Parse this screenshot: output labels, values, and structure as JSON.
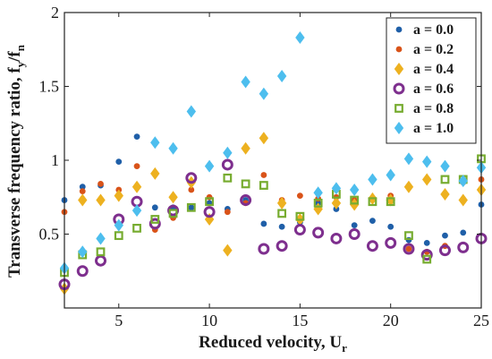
{
  "chart_data": {
    "type": "scatter",
    "title": "",
    "xlabel": "Reduced velocity, U",
    "xlabel_sub": "r",
    "ylabel": "Transverse frequency ratio, f",
    "ylabel_sub1": "y",
    "ylabel_mid": "/f",
    "ylabel_sub2": "n",
    "xlim": [
      2,
      25
    ],
    "ylim": [
      0,
      2
    ],
    "xticks": [
      5,
      10,
      15,
      20,
      25
    ],
    "yticks": [
      0.5,
      1,
      1.5,
      2
    ],
    "xtick_labels": [
      "5",
      "10",
      "15",
      "20",
      "25"
    ],
    "ytick_labels": [
      "0.5",
      "1",
      "1.5",
      "2"
    ],
    "grid": false,
    "legend_position": "top-right",
    "series": [
      {
        "name": "a = 0.0",
        "color": "#1f5fa8",
        "marker": "circle-small",
        "points": [
          [
            2,
            0.73
          ],
          [
            3,
            0.82
          ],
          [
            4,
            0.83
          ],
          [
            5,
            0.99
          ],
          [
            6,
            1.16
          ],
          [
            7,
            0.68
          ],
          [
            8,
            0.68
          ],
          [
            9,
            0.68
          ],
          [
            10,
            0.71
          ],
          [
            11,
            0.67
          ],
          [
            12,
            0.73
          ],
          [
            13,
            0.57
          ],
          [
            14,
            0.55
          ],
          [
            15,
            0.58
          ],
          [
            16,
            0.71
          ],
          [
            17,
            0.67
          ],
          [
            18,
            0.56
          ],
          [
            19,
            0.59
          ],
          [
            20,
            0.55
          ],
          [
            21,
            0.46
          ],
          [
            22,
            0.44
          ],
          [
            23,
            0.49
          ],
          [
            24,
            0.51
          ],
          [
            25,
            0.7
          ]
        ]
      },
      {
        "name": "a = 0.2",
        "color": "#d95319",
        "marker": "circle-small",
        "points": [
          [
            2,
            0.65
          ],
          [
            3,
            0.79
          ],
          [
            4,
            0.84
          ],
          [
            5,
            0.8
          ],
          [
            6,
            0.96
          ],
          [
            7,
            0.53
          ],
          [
            8,
            0.61
          ],
          [
            9,
            0.8
          ],
          [
            10,
            0.75
          ],
          [
            11,
            0.65
          ],
          [
            12,
            0.71
          ],
          [
            13,
            0.9
          ],
          [
            14,
            0.73
          ],
          [
            15,
            0.76
          ],
          [
            16,
            0.74
          ],
          [
            17,
            0.75
          ],
          [
            18,
            0.73
          ],
          [
            19,
            0.74
          ],
          [
            20,
            0.76
          ],
          [
            21,
            0.4
          ],
          [
            22,
            0.38
          ],
          [
            23,
            0.42
          ],
          [
            24,
            0.85
          ],
          [
            25,
            0.87
          ]
        ]
      },
      {
        "name": "a = 0.4",
        "color": "#edb120",
        "marker": "diamond",
        "points": [
          [
            2,
            0.13
          ],
          [
            3,
            0.73
          ],
          [
            4,
            0.73
          ],
          [
            5,
            0.76
          ],
          [
            6,
            0.82
          ],
          [
            7,
            0.91
          ],
          [
            8,
            0.75
          ],
          [
            9,
            0.85
          ],
          [
            10,
            0.6
          ],
          [
            11,
            0.39
          ],
          [
            12,
            1.08
          ],
          [
            13,
            1.15
          ],
          [
            14,
            0.71
          ],
          [
            15,
            0.6
          ],
          [
            16,
            0.67
          ],
          [
            17,
            0.71
          ],
          [
            18,
            0.7
          ],
          [
            19,
            0.74
          ],
          [
            20,
            0.73
          ],
          [
            21,
            0.82
          ],
          [
            22,
            0.87
          ],
          [
            23,
            0.77
          ],
          [
            24,
            0.73
          ],
          [
            25,
            0.8
          ]
        ]
      },
      {
        "name": "a = 0.6",
        "color": "#7e2f8e",
        "marker": "circle-ring",
        "points": [
          [
            2,
            0.16
          ],
          [
            3,
            0.25
          ],
          [
            4,
            0.32
          ],
          [
            5,
            0.6
          ],
          [
            6,
            0.72
          ],
          [
            7,
            0.57
          ],
          [
            8,
            0.66
          ],
          [
            9,
            0.88
          ],
          [
            10,
            0.65
          ],
          [
            11,
            0.97
          ],
          [
            12,
            0.73
          ],
          [
            13,
            0.4
          ],
          [
            14,
            0.42
          ],
          [
            15,
            0.53
          ],
          [
            16,
            0.51
          ],
          [
            17,
            0.47
          ],
          [
            18,
            0.5
          ],
          [
            19,
            0.42
          ],
          [
            20,
            0.44
          ],
          [
            21,
            0.4
          ],
          [
            22,
            0.36
          ],
          [
            23,
            0.39
          ],
          [
            24,
            0.41
          ],
          [
            25,
            0.47
          ]
        ]
      },
      {
        "name": "a = 0.8",
        "color": "#77ac30",
        "marker": "square",
        "points": [
          [
            2,
            0.24
          ],
          [
            3,
            0.36
          ],
          [
            4,
            0.38
          ],
          [
            5,
            0.49
          ],
          [
            6,
            0.54
          ],
          [
            7,
            0.6
          ],
          [
            8,
            0.64
          ],
          [
            9,
            0.68
          ],
          [
            10,
            0.72
          ],
          [
            11,
            0.88
          ],
          [
            12,
            0.84
          ],
          [
            13,
            0.83
          ],
          [
            14,
            0.64
          ],
          [
            15,
            0.62
          ],
          [
            16,
            0.71
          ],
          [
            17,
            0.77
          ],
          [
            18,
            0.73
          ],
          [
            19,
            0.72
          ],
          [
            20,
            0.72
          ],
          [
            21,
            0.49
          ],
          [
            22,
            0.33
          ],
          [
            23,
            0.87
          ],
          [
            24,
            0.87
          ],
          [
            25,
            1.01
          ]
        ]
      },
      {
        "name": "a = 1.0",
        "color": "#4dbeee",
        "marker": "diamond",
        "points": [
          [
            2,
            0.27
          ],
          [
            3,
            0.38
          ],
          [
            4,
            0.47
          ],
          [
            5,
            0.56
          ],
          [
            6,
            0.66
          ],
          [
            7,
            1.12
          ],
          [
            8,
            1.08
          ],
          [
            9,
            1.33
          ],
          [
            10,
            0.96
          ],
          [
            11,
            1.05
          ],
          [
            12,
            1.53
          ],
          [
            13,
            1.45
          ],
          [
            14,
            1.57
          ],
          [
            15,
            1.83
          ],
          [
            16,
            0.78
          ],
          [
            17,
            0.81
          ],
          [
            18,
            0.8
          ],
          [
            19,
            0.87
          ],
          [
            20,
            0.9
          ],
          [
            21,
            1.01
          ],
          [
            22,
            0.99
          ],
          [
            23,
            0.96
          ],
          [
            24,
            0.86
          ],
          [
            25,
            0.95
          ]
        ]
      }
    ]
  }
}
